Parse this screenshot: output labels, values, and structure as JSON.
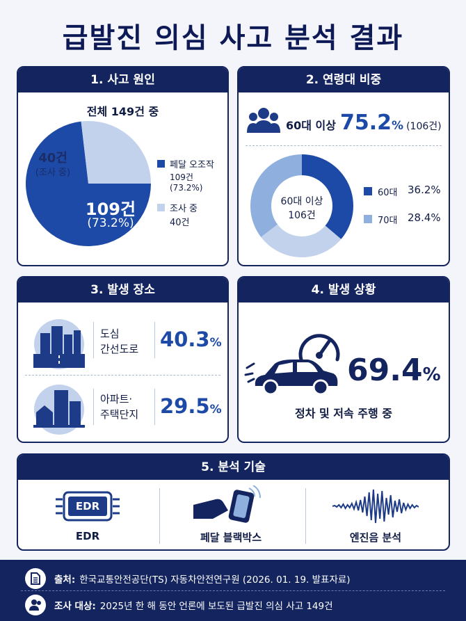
{
  "title": "급발진 의심 사고 분석 결과",
  "colors": {
    "navy": "#13245f",
    "blue": "#1d4aa6",
    "light": "#c3d2ec",
    "mid": "#8fb0df"
  },
  "cause": {
    "header": "1. 사고 원인",
    "total": "전체 149건 중",
    "slices": [
      {
        "label": "페달 오조작",
        "value": 109,
        "pct": 73.2,
        "desc": "109건 (73.2%)",
        "big": "109건",
        "big_pct": "(73.2%)"
      },
      {
        "label": "조사 중",
        "value": 40,
        "desc": "40건",
        "big": "40건",
        "big_pct": "(조사 중)"
      }
    ]
  },
  "age": {
    "header": "2. 연령대 비중",
    "summary_prefix": "60대 이상",
    "summary_pct": "75.2",
    "summary_unit": "%",
    "summary_count": "(106건)",
    "donut_center_1": "60대 이상",
    "donut_center_2": "106건",
    "items": [
      {
        "label": "60대",
        "pct": "36.2%",
        "value": 36.2
      },
      {
        "label": "70대",
        "pct": "28.4%",
        "value": 28.4
      }
    ]
  },
  "place": {
    "header": "3. 발생 장소",
    "items": [
      {
        "label1": "도심",
        "label2": "간선도로",
        "pct": "40.3",
        "unit": "%"
      },
      {
        "label1": "아파트·",
        "label2": "주택단지",
        "pct": "29.5",
        "unit": "%"
      }
    ]
  },
  "situation": {
    "header": "4. 발생 상황",
    "pct": "69.4",
    "unit": "%",
    "caption": "정차 및 저속 주행 중"
  },
  "tech": {
    "header": "5. 분석 기술",
    "items": [
      {
        "label": "EDR",
        "chip_text": "EDR"
      },
      {
        "label": "페달 블랙박스"
      },
      {
        "label": "엔진음 분석"
      }
    ]
  },
  "footer": {
    "source_label": "출처:",
    "source_text": "한국교통안전공단(TS) 자동차안전연구원 (2026. 01. 19. 발표자료)",
    "target_label": "조사 대상:",
    "target_text": "2025년 한 해 동안 언론에 보도된 급발진 의심 사고 149건"
  }
}
